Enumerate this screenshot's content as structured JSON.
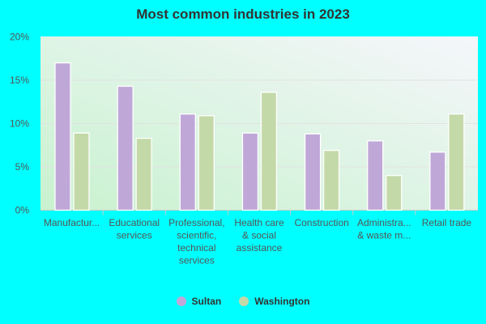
{
  "chart_data": {
    "type": "bar",
    "title": "Most common industries in 2023",
    "categories": [
      [
        "Manufactur..."
      ],
      [
        "Educational",
        "services"
      ],
      [
        "Professional,",
        "scientific,",
        "technical",
        "services"
      ],
      [
        "Health care",
        "& social",
        "assistance"
      ],
      [
        "Construction"
      ],
      [
        "Administra...",
        "& waste m..."
      ],
      [
        "Retail trade"
      ]
    ],
    "series": [
      {
        "name": "Sultan",
        "color": "#bfa8d8",
        "values": [
          17.0,
          14.3,
          11.1,
          8.9,
          8.8,
          8.0,
          6.7
        ]
      },
      {
        "name": "Washington",
        "color": "#c4d9a8",
        "values": [
          8.9,
          8.3,
          10.9,
          13.6,
          6.9,
          4.0,
          11.1
        ]
      }
    ],
    "yticks": [
      "0%",
      "5%",
      "10%",
      "15%",
      "20%"
    ],
    "ylim": [
      0,
      20
    ],
    "grid": true,
    "legend": "bottom"
  }
}
